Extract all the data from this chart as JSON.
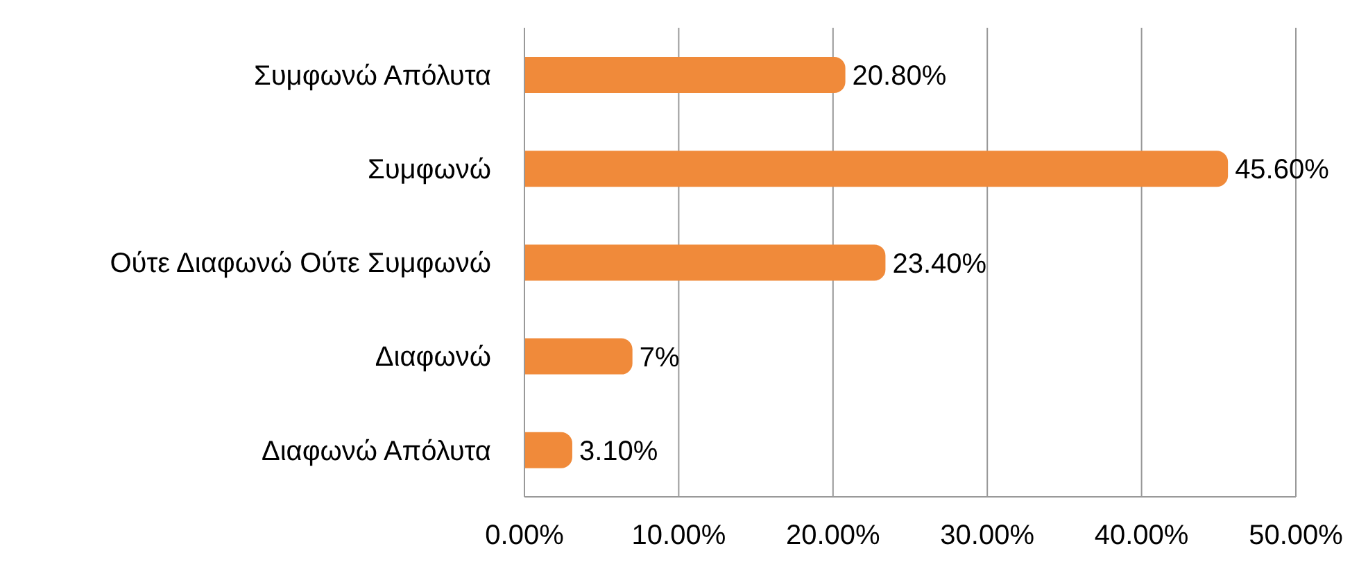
{
  "chart_data": {
    "type": "bar",
    "orientation": "horizontal",
    "categories": [
      "Συμφωνώ Απόλυτα",
      "Συμφωνώ",
      "Ούτε Διαφωνώ Ούτε Συμφωνώ",
      "Διαφωνώ",
      "Διαφωνώ Απόλυτα"
    ],
    "values": [
      20.8,
      45.6,
      23.4,
      7,
      3.1
    ],
    "value_labels": [
      "20.80%",
      "45.60%",
      "23.40%",
      "7%",
      "3.10%"
    ],
    "color": "#f08a3a",
    "xlim": [
      0,
      50
    ],
    "xticks": [
      {
        "value": 0,
        "label": "0.00%"
      },
      {
        "value": 10,
        "label": "10.00%"
      },
      {
        "value": 20,
        "label": "20.00%"
      },
      {
        "value": 30,
        "label": "30.00%"
      },
      {
        "value": 40,
        "label": "40.00%"
      },
      {
        "value": 50,
        "label": "50.00%"
      }
    ],
    "grid": "x",
    "legend": false
  }
}
